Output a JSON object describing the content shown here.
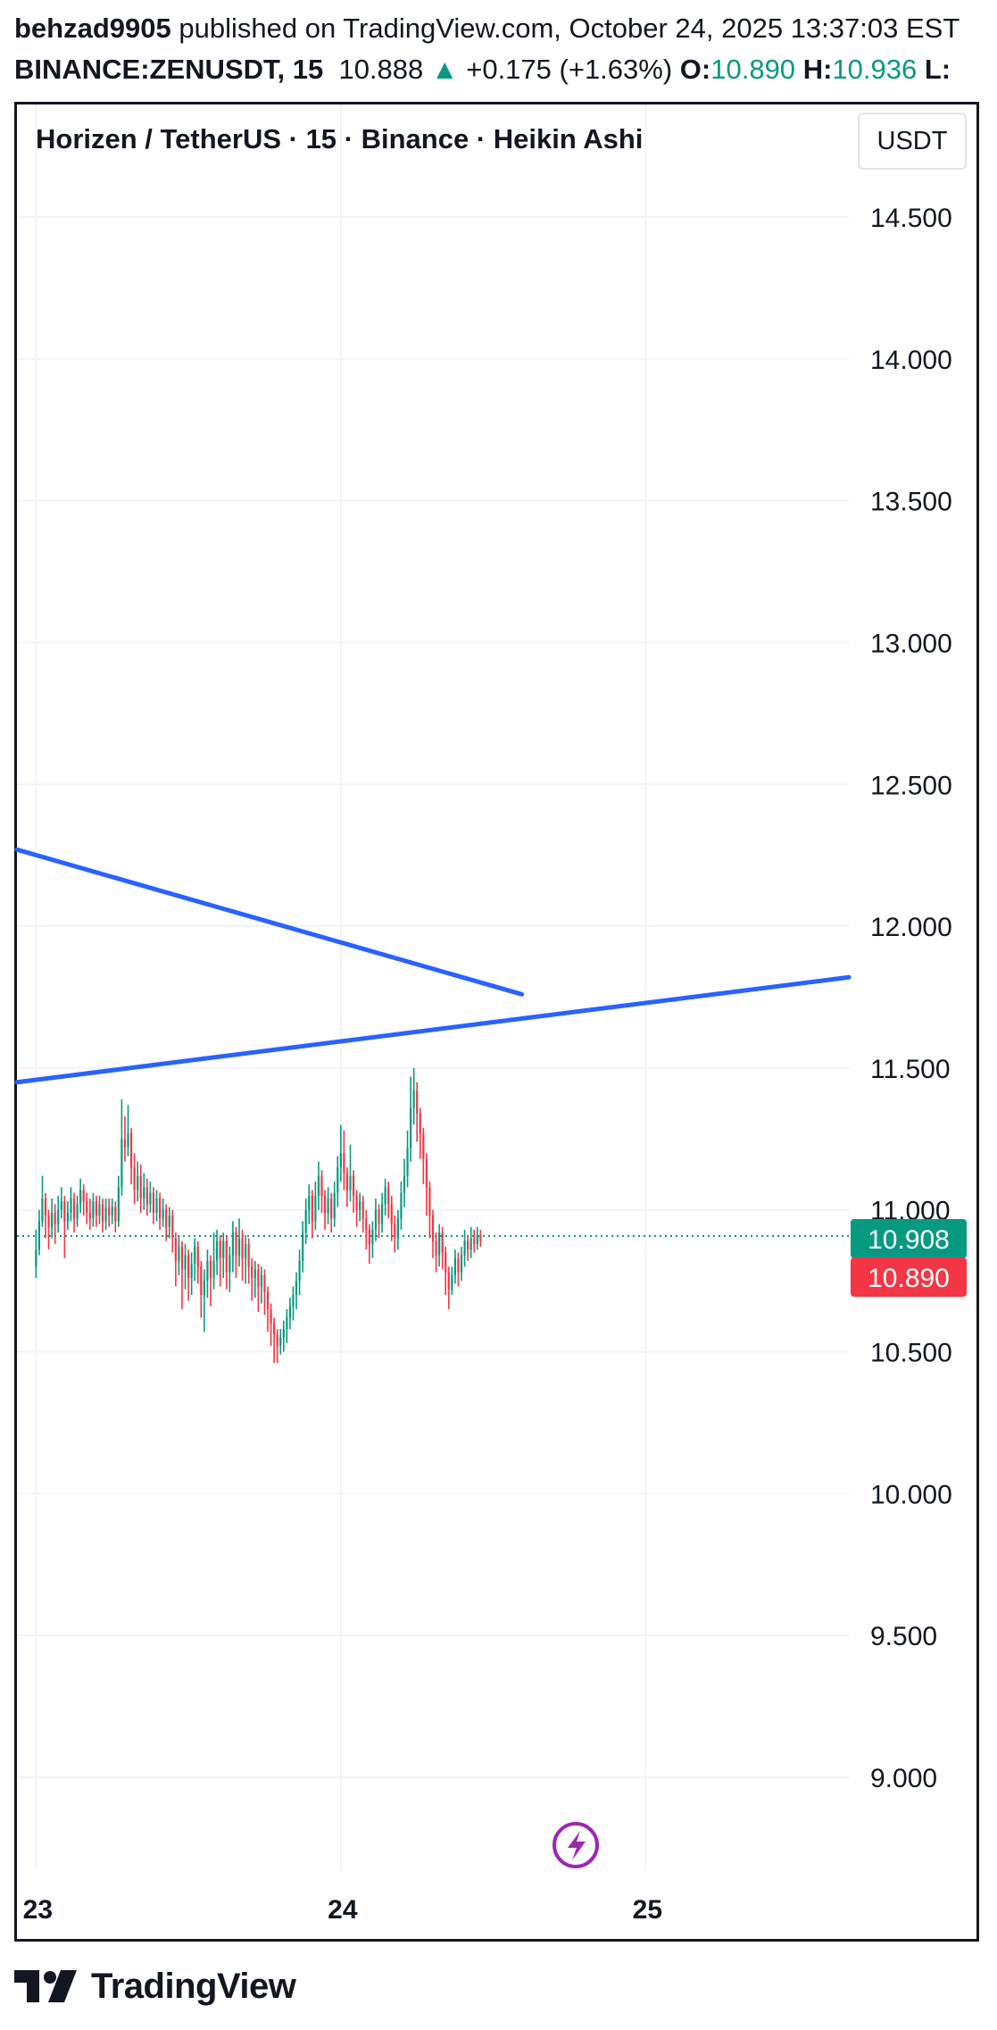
{
  "header": {
    "username": "behzad9905",
    "published_text": " published on TradingView.com, October 24, 2025 13:37:03 EST",
    "symbol": "BINANCE:ZENUSDT, 15",
    "last_price": "10.888",
    "change": "+0.175 (+1.63%)",
    "open_label": "O:",
    "open_value": "10.890",
    "high_label": "H:",
    "high_value": "10.936",
    "low_label": "L:"
  },
  "chart_title": "Horizen / TetherUS · 15 · Binance · Heikin Ashi",
  "currency_label": "USDT",
  "brand": "TradingView",
  "colors": {
    "up": "#089981",
    "down": "#f23645",
    "trendline": "#2962ff",
    "grid": "#f0f3fa",
    "current_price_line": "#089981",
    "lightning_icon": "#9c27b0"
  },
  "icons": {
    "up_arrow": "triangle-up-icon",
    "replay": "lightning-icon",
    "logo": "tradingview-logo-icon"
  },
  "chart_data": {
    "type": "candlestick",
    "style": "Heikin Ashi",
    "y_axis_labels": [
      "14.500",
      "14.000",
      "13.500",
      "13.000",
      "12.500",
      "12.000",
      "11.500",
      "11.000",
      "10.500",
      "10.000",
      "9.500",
      "9.000"
    ],
    "y_ticks": [
      14.5,
      14.0,
      13.5,
      13.0,
      12.5,
      12.0,
      11.5,
      11.0,
      10.5,
      10.0,
      9.5,
      9.0
    ],
    "ylim": [
      8.7,
      14.75
    ],
    "x_axis_labels": [
      "23",
      "24",
      "25"
    ],
    "x_ticks": [
      0,
      96,
      192
    ],
    "xlim": [
      -6,
      256
    ],
    "price_tags": [
      {
        "value": 10.908,
        "label": "10.908",
        "color": "#089981"
      },
      {
        "value": 10.89,
        "label": "10.890",
        "color": "#f23645"
      }
    ],
    "current_price": 10.908,
    "trendlines": [
      {
        "x1": -6,
        "y1": 12.27,
        "x2": 153,
        "y2": 11.76
      },
      {
        "x1": -6,
        "y1": 11.45,
        "x2": 256,
        "y2": 11.82
      }
    ],
    "candles": [
      [
        10.8,
        10.86,
        10.93,
        10.76
      ],
      [
        10.86,
        10.96,
        11.0,
        10.84
      ],
      [
        10.96,
        11.04,
        11.12,
        10.94
      ],
      [
        11.04,
        10.98,
        11.06,
        10.9
      ],
      [
        10.98,
        10.94,
        11.0,
        10.86
      ],
      [
        10.94,
        10.99,
        11.04,
        10.9
      ],
      [
        10.99,
        10.95,
        11.02,
        10.88
      ],
      [
        10.95,
        11.0,
        11.05,
        10.92
      ],
      [
        11.0,
        11.03,
        11.08,
        10.97
      ],
      [
        11.03,
        10.96,
        11.05,
        10.83
      ],
      [
        10.96,
        10.99,
        11.03,
        10.93
      ],
      [
        10.99,
        11.04,
        11.08,
        10.96
      ],
      [
        11.04,
        10.97,
        11.06,
        10.92
      ],
      [
        10.97,
        11.02,
        11.05,
        10.94
      ],
      [
        11.02,
        11.07,
        11.11,
        10.99
      ],
      [
        11.07,
        11.03,
        11.09,
        10.98
      ],
      [
        11.03,
        10.99,
        11.06,
        10.95
      ],
      [
        10.99,
        10.97,
        11.04,
        10.93
      ],
      [
        10.97,
        11.03,
        11.06,
        10.94
      ],
      [
        11.03,
        10.98,
        11.05,
        10.94
      ],
      [
        10.98,
        11.02,
        11.05,
        10.95
      ],
      [
        11.02,
        10.96,
        11.04,
        10.92
      ],
      [
        10.96,
        11.01,
        11.04,
        10.93
      ],
      [
        11.01,
        10.98,
        11.04,
        10.94
      ],
      [
        10.98,
        11.01,
        11.04,
        10.95
      ],
      [
        11.01,
        10.96,
        11.03,
        10.92
      ],
      [
        10.96,
        11.08,
        11.12,
        10.94
      ],
      [
        11.08,
        11.25,
        11.39,
        11.05
      ],
      [
        11.25,
        11.22,
        11.33,
        11.17
      ],
      [
        11.22,
        11.27,
        11.37,
        11.19
      ],
      [
        11.27,
        11.15,
        11.29,
        11.09
      ],
      [
        11.15,
        11.07,
        11.2,
        11.02
      ],
      [
        11.07,
        11.12,
        11.17,
        11.03
      ],
      [
        11.12,
        11.04,
        11.16,
        10.99
      ],
      [
        11.04,
        11.08,
        11.13,
        11.0
      ],
      [
        11.08,
        11.02,
        11.11,
        10.98
      ],
      [
        11.02,
        11.06,
        11.1,
        10.99
      ],
      [
        11.06,
        10.99,
        11.08,
        10.95
      ],
      [
        10.99,
        11.04,
        11.07,
        10.96
      ],
      [
        11.04,
        10.97,
        11.06,
        10.93
      ],
      [
        10.97,
        11.0,
        11.04,
        10.94
      ],
      [
        11.0,
        10.94,
        11.02,
        10.89
      ],
      [
        10.94,
        10.98,
        11.01,
        10.9
      ],
      [
        10.98,
        10.9,
        11.0,
        10.85
      ],
      [
        10.9,
        10.82,
        10.92,
        10.73
      ],
      [
        10.82,
        10.87,
        10.91,
        10.77
      ],
      [
        10.87,
        10.79,
        10.89,
        10.65
      ],
      [
        10.79,
        10.84,
        10.88,
        10.72
      ],
      [
        10.84,
        10.76,
        10.86,
        10.68
      ],
      [
        10.76,
        10.81,
        10.85,
        10.7
      ],
      [
        10.81,
        10.87,
        10.9,
        10.75
      ],
      [
        10.87,
        10.8,
        10.89,
        10.74
      ],
      [
        10.8,
        10.7,
        10.82,
        10.62
      ],
      [
        10.7,
        10.75,
        10.79,
        10.57
      ],
      [
        10.75,
        10.82,
        10.86,
        10.69
      ],
      [
        10.82,
        10.76,
        10.84,
        10.66
      ],
      [
        10.76,
        10.82,
        10.92,
        10.72
      ],
      [
        10.82,
        10.89,
        10.93,
        10.77
      ],
      [
        10.89,
        10.83,
        10.91,
        10.73
      ],
      [
        10.83,
        10.89,
        10.92,
        10.76
      ],
      [
        10.89,
        10.78,
        10.91,
        10.72
      ],
      [
        10.78,
        10.84,
        10.87,
        10.71
      ],
      [
        10.84,
        10.92,
        10.96,
        10.78
      ],
      [
        10.92,
        10.84,
        10.94,
        10.76
      ],
      [
        10.84,
        10.9,
        10.97,
        10.8
      ],
      [
        10.9,
        10.83,
        10.93,
        10.75
      ],
      [
        10.83,
        10.88,
        10.91,
        10.74
      ],
      [
        10.88,
        10.8,
        10.9,
        10.74
      ],
      [
        10.8,
        10.76,
        10.83,
        10.68
      ],
      [
        10.76,
        10.79,
        10.82,
        10.69
      ],
      [
        10.79,
        10.73,
        10.81,
        10.64
      ],
      [
        10.73,
        10.77,
        10.8,
        10.67
      ],
      [
        10.77,
        10.71,
        10.79,
        10.63
      ],
      [
        10.71,
        10.65,
        10.73,
        10.57
      ],
      [
        10.65,
        10.6,
        10.67,
        10.52
      ],
      [
        10.6,
        10.56,
        10.62,
        10.46
      ],
      [
        10.56,
        10.52,
        10.58,
        10.46
      ],
      [
        10.52,
        10.55,
        10.58,
        10.49
      ],
      [
        10.55,
        10.58,
        10.61,
        10.5
      ],
      [
        10.58,
        10.62,
        10.65,
        10.53
      ],
      [
        10.62,
        10.66,
        10.69,
        10.58
      ],
      [
        10.66,
        10.7,
        10.73,
        10.61
      ],
      [
        10.7,
        10.75,
        10.78,
        10.65
      ],
      [
        10.75,
        10.82,
        10.86,
        10.7
      ],
      [
        10.82,
        10.92,
        10.96,
        10.78
      ],
      [
        10.92,
        11.0,
        11.04,
        10.88
      ],
      [
        11.0,
        11.05,
        11.09,
        10.95
      ],
      [
        11.05,
        10.96,
        11.07,
        10.9
      ],
      [
        10.96,
        11.05,
        11.1,
        10.93
      ],
      [
        11.05,
        11.12,
        11.17,
        11.0
      ],
      [
        11.12,
        11.05,
        11.14,
        10.99
      ],
      [
        11.05,
        10.99,
        11.07,
        10.93
      ],
      [
        10.99,
        11.04,
        11.08,
        10.95
      ],
      [
        11.04,
        10.97,
        11.06,
        10.92
      ],
      [
        10.97,
        11.06,
        11.1,
        10.94
      ],
      [
        11.06,
        11.15,
        11.19,
        11.01
      ],
      [
        11.15,
        11.2,
        11.3,
        11.1
      ],
      [
        11.2,
        11.13,
        11.28,
        11.07
      ],
      [
        11.13,
        11.07,
        11.15,
        11.01
      ],
      [
        11.07,
        11.12,
        11.23,
        11.03
      ],
      [
        11.12,
        11.05,
        11.14,
        10.99
      ],
      [
        11.05,
        11.0,
        11.07,
        10.94
      ],
      [
        11.0,
        11.03,
        11.06,
        10.96
      ],
      [
        11.03,
        10.97,
        11.05,
        10.92
      ],
      [
        10.97,
        10.93,
        11.0,
        10.86
      ],
      [
        10.93,
        10.88,
        10.95,
        10.81
      ],
      [
        10.88,
        10.93,
        10.96,
        10.83
      ],
      [
        10.93,
        11.0,
        11.04,
        10.89
      ],
      [
        11.0,
        10.95,
        11.02,
        10.9
      ],
      [
        10.95,
        11.02,
        11.06,
        10.92
      ],
      [
        11.02,
        11.08,
        11.11,
        10.98
      ],
      [
        11.08,
        11.02,
        11.1,
        10.97
      ],
      [
        11.02,
        10.95,
        11.05,
        10.89
      ],
      [
        10.95,
        10.9,
        10.98,
        10.85
      ],
      [
        10.9,
        10.97,
        11.0,
        10.86
      ],
      [
        10.97,
        11.06,
        11.1,
        10.93
      ],
      [
        11.06,
        11.12,
        11.18,
        11.01
      ],
      [
        11.12,
        11.22,
        11.28,
        11.08
      ],
      [
        11.22,
        11.36,
        11.47,
        11.17
      ],
      [
        11.36,
        11.42,
        11.5,
        11.3
      ],
      [
        11.42,
        11.34,
        11.45,
        11.24
      ],
      [
        11.34,
        11.27,
        11.36,
        11.18
      ],
      [
        11.27,
        11.18,
        11.29,
        11.09
      ],
      [
        11.18,
        11.08,
        11.2,
        10.98
      ],
      [
        11.08,
        10.98,
        11.1,
        10.9
      ],
      [
        10.98,
        10.89,
        11.0,
        10.83
      ],
      [
        10.89,
        10.84,
        10.92,
        10.78
      ],
      [
        10.84,
        10.92,
        10.95,
        10.8
      ],
      [
        10.92,
        10.85,
        10.94,
        10.79
      ],
      [
        10.85,
        10.78,
        10.87,
        10.7
      ],
      [
        10.78,
        10.72,
        10.8,
        10.65
      ],
      [
        10.72,
        10.77,
        10.8,
        10.7
      ],
      [
        10.77,
        10.83,
        10.86,
        10.74
      ],
      [
        10.83,
        10.78,
        10.85,
        10.73
      ],
      [
        10.78,
        10.84,
        10.87,
        10.75
      ],
      [
        10.84,
        10.89,
        10.93,
        10.8
      ],
      [
        10.89,
        10.86,
        10.91,
        10.82
      ],
      [
        10.86,
        10.9,
        10.94,
        10.83
      ],
      [
        10.9,
        10.88,
        10.93,
        10.85
      ],
      [
        10.88,
        10.91,
        10.94,
        10.86
      ],
      [
        10.91,
        10.89,
        10.93,
        10.87
      ]
    ]
  }
}
